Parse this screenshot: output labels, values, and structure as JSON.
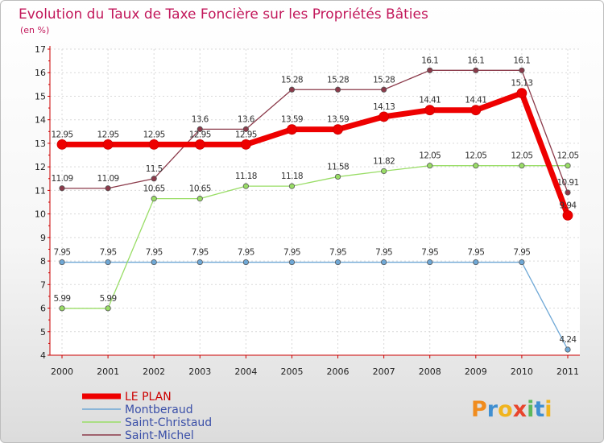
{
  "chart_data": {
    "type": "line",
    "title": "Evolution du Taux de Taxe Foncière sur les Propriétés Bâties",
    "subtitle": "(en %)",
    "xlabel": "",
    "ylabel": "",
    "categories": [
      "2000",
      "2001",
      "2002",
      "2003",
      "2004",
      "2005",
      "2006",
      "2007",
      "2008",
      "2009",
      "2010",
      "2011"
    ],
    "ylim": [
      4,
      17
    ],
    "yticks": [
      4,
      5,
      6,
      7,
      8,
      9,
      10,
      11,
      12,
      13,
      14,
      15,
      16,
      17
    ],
    "grid": true,
    "legend_position": "bottom-left",
    "series": [
      {
        "name": "LE PLAN",
        "color": "#ee0000",
        "values": [
          12.95,
          12.95,
          12.95,
          12.95,
          12.95,
          13.59,
          13.59,
          14.13,
          14.41,
          14.41,
          15.13,
          9.94
        ],
        "labels": [
          "12.95",
          "12.95",
          "12.95",
          "12.95",
          "12.95",
          "13.59",
          "13.59",
          "14.13",
          "14.41",
          "14.41",
          "15.13",
          "9.94"
        ]
      },
      {
        "name": "Montberaud",
        "color": "#6fa8d6",
        "values": [
          7.95,
          7.95,
          7.95,
          7.95,
          7.95,
          7.95,
          7.95,
          7.95,
          7.95,
          7.95,
          7.95,
          4.24
        ],
        "labels": [
          "7.95",
          "7.95",
          "7.95",
          "7.95",
          "7.95",
          "7.95",
          "7.95",
          "7.95",
          "7.95",
          "7.95",
          "7.95",
          "4.24"
        ]
      },
      {
        "name": "Saint-Christaud",
        "color": "#99dd66",
        "values": [
          5.99,
          5.99,
          10.65,
          10.65,
          11.18,
          11.18,
          11.58,
          11.82,
          12.05,
          12.05,
          12.05,
          12.05
        ],
        "labels": [
          "5.99",
          "5.99",
          "10.65",
          "10.65",
          "11.18",
          "11.18",
          "11.58",
          "11.82",
          "12.05",
          "12.05",
          "12.05",
          "12.05"
        ]
      },
      {
        "name": "Saint-Michel",
        "color": "#8b3a4a",
        "values": [
          11.09,
          11.09,
          11.5,
          13.6,
          13.6,
          15.28,
          15.28,
          15.28,
          16.1,
          16.1,
          16.1,
          10.91
        ],
        "labels": [
          "11.09",
          "11.09",
          "11.5",
          "13.6",
          "13.6",
          "15.28",
          "15.28",
          "15.28",
          "16.1",
          "16.1",
          "16.1",
          "10.91"
        ]
      }
    ]
  },
  "logo": {
    "letters": [
      "P",
      "r",
      "o",
      "x",
      "i",
      "t",
      "i"
    ],
    "colors": [
      "#f08c1e",
      "#3f8fd1",
      "#f0b41e",
      "#e8452c",
      "#5cb85c",
      "#3f8fd1",
      "#f0b41e"
    ]
  }
}
